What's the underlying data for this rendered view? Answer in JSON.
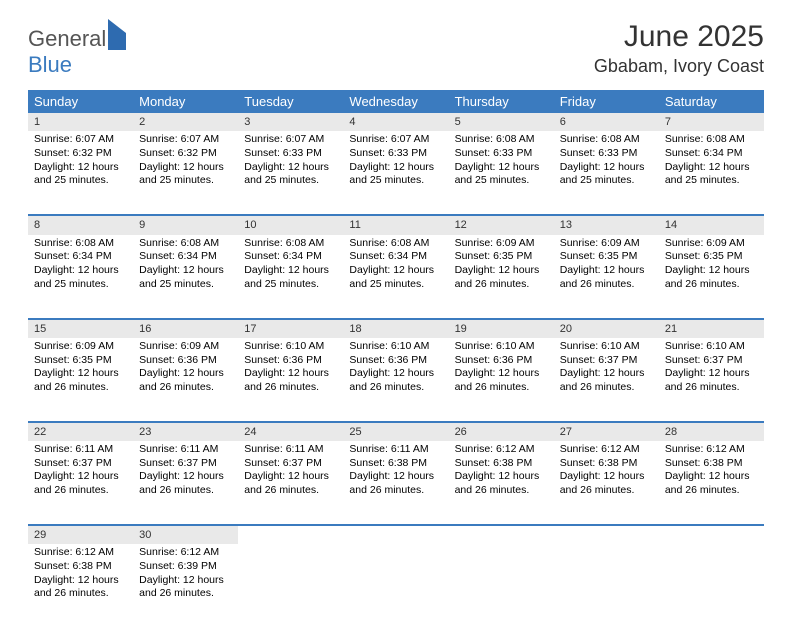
{
  "logo": {
    "general": "General",
    "blue": "Blue"
  },
  "title": "June 2025",
  "location": "Gbabam, Ivory Coast",
  "colors": {
    "header_bg": "#3b7bbf",
    "daynum_bg": "#e9e9e9",
    "border": "#3b7bbf"
  },
  "font": {
    "title_size": 30,
    "header_size": 13,
    "body_size": 10.5
  },
  "weekdays": [
    "Sunday",
    "Monday",
    "Tuesday",
    "Wednesday",
    "Thursday",
    "Friday",
    "Saturday"
  ],
  "weeks": [
    [
      {
        "day": "1",
        "sunrise": "Sunrise: 6:07 AM",
        "sunset": "Sunset: 6:32 PM",
        "daylight1": "Daylight: 12 hours",
        "daylight2": "and 25 minutes."
      },
      {
        "day": "2",
        "sunrise": "Sunrise: 6:07 AM",
        "sunset": "Sunset: 6:32 PM",
        "daylight1": "Daylight: 12 hours",
        "daylight2": "and 25 minutes."
      },
      {
        "day": "3",
        "sunrise": "Sunrise: 6:07 AM",
        "sunset": "Sunset: 6:33 PM",
        "daylight1": "Daylight: 12 hours",
        "daylight2": "and 25 minutes."
      },
      {
        "day": "4",
        "sunrise": "Sunrise: 6:07 AM",
        "sunset": "Sunset: 6:33 PM",
        "daylight1": "Daylight: 12 hours",
        "daylight2": "and 25 minutes."
      },
      {
        "day": "5",
        "sunrise": "Sunrise: 6:08 AM",
        "sunset": "Sunset: 6:33 PM",
        "daylight1": "Daylight: 12 hours",
        "daylight2": "and 25 minutes."
      },
      {
        "day": "6",
        "sunrise": "Sunrise: 6:08 AM",
        "sunset": "Sunset: 6:33 PM",
        "daylight1": "Daylight: 12 hours",
        "daylight2": "and 25 minutes."
      },
      {
        "day": "7",
        "sunrise": "Sunrise: 6:08 AM",
        "sunset": "Sunset: 6:34 PM",
        "daylight1": "Daylight: 12 hours",
        "daylight2": "and 25 minutes."
      }
    ],
    [
      {
        "day": "8",
        "sunrise": "Sunrise: 6:08 AM",
        "sunset": "Sunset: 6:34 PM",
        "daylight1": "Daylight: 12 hours",
        "daylight2": "and 25 minutes."
      },
      {
        "day": "9",
        "sunrise": "Sunrise: 6:08 AM",
        "sunset": "Sunset: 6:34 PM",
        "daylight1": "Daylight: 12 hours",
        "daylight2": "and 25 minutes."
      },
      {
        "day": "10",
        "sunrise": "Sunrise: 6:08 AM",
        "sunset": "Sunset: 6:34 PM",
        "daylight1": "Daylight: 12 hours",
        "daylight2": "and 25 minutes."
      },
      {
        "day": "11",
        "sunrise": "Sunrise: 6:08 AM",
        "sunset": "Sunset: 6:34 PM",
        "daylight1": "Daylight: 12 hours",
        "daylight2": "and 25 minutes."
      },
      {
        "day": "12",
        "sunrise": "Sunrise: 6:09 AM",
        "sunset": "Sunset: 6:35 PM",
        "daylight1": "Daylight: 12 hours",
        "daylight2": "and 26 minutes."
      },
      {
        "day": "13",
        "sunrise": "Sunrise: 6:09 AM",
        "sunset": "Sunset: 6:35 PM",
        "daylight1": "Daylight: 12 hours",
        "daylight2": "and 26 minutes."
      },
      {
        "day": "14",
        "sunrise": "Sunrise: 6:09 AM",
        "sunset": "Sunset: 6:35 PM",
        "daylight1": "Daylight: 12 hours",
        "daylight2": "and 26 minutes."
      }
    ],
    [
      {
        "day": "15",
        "sunrise": "Sunrise: 6:09 AM",
        "sunset": "Sunset: 6:35 PM",
        "daylight1": "Daylight: 12 hours",
        "daylight2": "and 26 minutes."
      },
      {
        "day": "16",
        "sunrise": "Sunrise: 6:09 AM",
        "sunset": "Sunset: 6:36 PM",
        "daylight1": "Daylight: 12 hours",
        "daylight2": "and 26 minutes."
      },
      {
        "day": "17",
        "sunrise": "Sunrise: 6:10 AM",
        "sunset": "Sunset: 6:36 PM",
        "daylight1": "Daylight: 12 hours",
        "daylight2": "and 26 minutes."
      },
      {
        "day": "18",
        "sunrise": "Sunrise: 6:10 AM",
        "sunset": "Sunset: 6:36 PM",
        "daylight1": "Daylight: 12 hours",
        "daylight2": "and 26 minutes."
      },
      {
        "day": "19",
        "sunrise": "Sunrise: 6:10 AM",
        "sunset": "Sunset: 6:36 PM",
        "daylight1": "Daylight: 12 hours",
        "daylight2": "and 26 minutes."
      },
      {
        "day": "20",
        "sunrise": "Sunrise: 6:10 AM",
        "sunset": "Sunset: 6:37 PM",
        "daylight1": "Daylight: 12 hours",
        "daylight2": "and 26 minutes."
      },
      {
        "day": "21",
        "sunrise": "Sunrise: 6:10 AM",
        "sunset": "Sunset: 6:37 PM",
        "daylight1": "Daylight: 12 hours",
        "daylight2": "and 26 minutes."
      }
    ],
    [
      {
        "day": "22",
        "sunrise": "Sunrise: 6:11 AM",
        "sunset": "Sunset: 6:37 PM",
        "daylight1": "Daylight: 12 hours",
        "daylight2": "and 26 minutes."
      },
      {
        "day": "23",
        "sunrise": "Sunrise: 6:11 AM",
        "sunset": "Sunset: 6:37 PM",
        "daylight1": "Daylight: 12 hours",
        "daylight2": "and 26 minutes."
      },
      {
        "day": "24",
        "sunrise": "Sunrise: 6:11 AM",
        "sunset": "Sunset: 6:37 PM",
        "daylight1": "Daylight: 12 hours",
        "daylight2": "and 26 minutes."
      },
      {
        "day": "25",
        "sunrise": "Sunrise: 6:11 AM",
        "sunset": "Sunset: 6:38 PM",
        "daylight1": "Daylight: 12 hours",
        "daylight2": "and 26 minutes."
      },
      {
        "day": "26",
        "sunrise": "Sunrise: 6:12 AM",
        "sunset": "Sunset: 6:38 PM",
        "daylight1": "Daylight: 12 hours",
        "daylight2": "and 26 minutes."
      },
      {
        "day": "27",
        "sunrise": "Sunrise: 6:12 AM",
        "sunset": "Sunset: 6:38 PM",
        "daylight1": "Daylight: 12 hours",
        "daylight2": "and 26 minutes."
      },
      {
        "day": "28",
        "sunrise": "Sunrise: 6:12 AM",
        "sunset": "Sunset: 6:38 PM",
        "daylight1": "Daylight: 12 hours",
        "daylight2": "and 26 minutes."
      }
    ],
    [
      {
        "day": "29",
        "sunrise": "Sunrise: 6:12 AM",
        "sunset": "Sunset: 6:38 PM",
        "daylight1": "Daylight: 12 hours",
        "daylight2": "and 26 minutes."
      },
      {
        "day": "30",
        "sunrise": "Sunrise: 6:12 AM",
        "sunset": "Sunset: 6:39 PM",
        "daylight1": "Daylight: 12 hours",
        "daylight2": "and 26 minutes."
      },
      null,
      null,
      null,
      null,
      null
    ]
  ]
}
